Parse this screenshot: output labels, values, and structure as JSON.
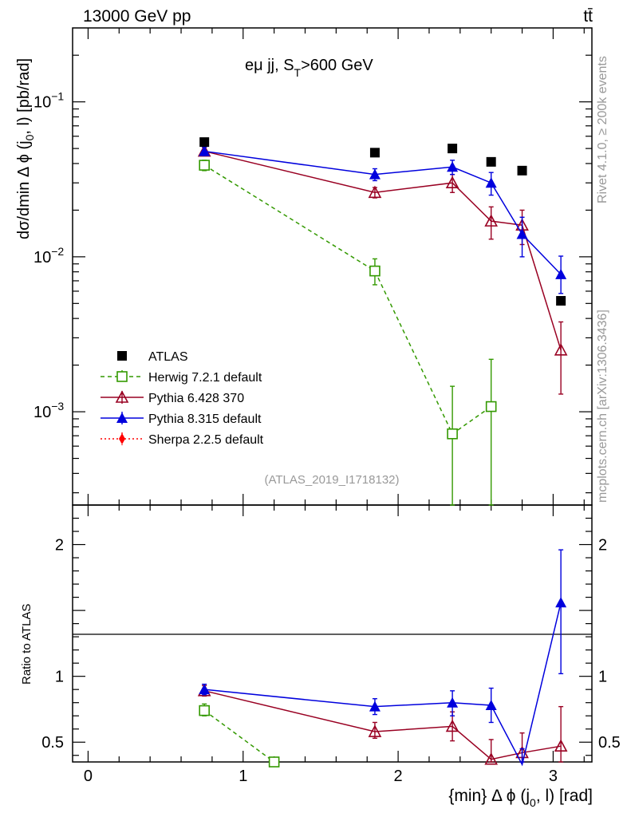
{
  "header": {
    "energy_label": "13000 GeV pp",
    "process_label": "tt̄"
  },
  "side_labels": {
    "rivet": "Rivet 4.1.0, ≥ 200k events",
    "mcplots": "mcplots.cern.ch [arXiv:1306.3436]"
  },
  "chart_data": {
    "type": "line",
    "title": "eμ jj, S_T>600 GeV",
    "title_main": "eμ jj, S",
    "title_sub": "T",
    "title_tail": ">600 GeV",
    "analysis_id": "(ATLAS_2019_I1718132)",
    "ylabel": "dσ/dmin Δ ϕ (j_0, l) [pb/rad]",
    "ylabel_parts": {
      "a": "dσ/dmin Δ ϕ (j",
      "sub": "0",
      "b": ", l) [pb/rad]"
    },
    "xlabel": "{min} Δ ϕ (j_0, l) [rad]",
    "xlabel_parts": {
      "a": "{min} Δ ϕ (j",
      "sub": "0",
      "b": ", l) [rad]"
    },
    "ratio_ylabel": "Ratio to ATLAS",
    "xlim": [
      -0.1,
      3.25
    ],
    "ylim": [
      0.00025,
      0.3
    ],
    "ratio_ylim": [
      0.35,
      2.3
    ],
    "x_ticks": [
      "0",
      "1",
      "2",
      "3"
    ],
    "y_ticks": [
      {
        "value": 0.1,
        "base": "10",
        "exp": "−1"
      },
      {
        "value": 0.01,
        "base": "10",
        "exp": "−2"
      },
      {
        "value": 0.001,
        "base": "10",
        "exp": "−3"
      }
    ],
    "ratio_ticks": [
      "0.5",
      "1",
      "2"
    ],
    "legend_position": "left-middle",
    "series": [
      {
        "name": "ATLAS",
        "color": "#000000",
        "marker": "square-filled",
        "line": "none",
        "x": [
          0.75,
          1.85,
          2.35,
          2.6,
          2.8,
          3.05
        ],
        "y": [
          0.055,
          0.047,
          0.05,
          0.041,
          0.036,
          0.0052
        ]
      },
      {
        "name": "Herwig 7.2.1 default",
        "color": "#339900",
        "marker": "square-open",
        "line": "dashed",
        "x": [
          0.75,
          1.85,
          2.35,
          2.6
        ],
        "y": [
          0.039,
          0.0081,
          0.00072,
          0.00108
        ],
        "err_lo": [
          0.036,
          0.0066,
          1e-05,
          1e-05
        ],
        "err_hi": [
          0.042,
          0.0097,
          0.00146,
          0.00218
        ],
        "ratio_x": [
          0.75,
          1.2
        ],
        "ratio": [
          0.74,
          0.35
        ],
        "ratio_lo": [
          0.7,
          null
        ],
        "ratio_hi": [
          0.79,
          null
        ]
      },
      {
        "name": "Pythia 6.428 370",
        "color": "#990022",
        "marker": "triangle-open",
        "line": "solid",
        "x": [
          0.75,
          1.85,
          2.35,
          2.6,
          2.8,
          3.05
        ],
        "y": [
          0.048,
          0.026,
          0.03,
          0.017,
          0.016,
          0.0025
        ],
        "err_lo": [
          0.045,
          0.024,
          0.026,
          0.013,
          0.012,
          0.0013
        ],
        "err_hi": [
          0.051,
          0.028,
          0.034,
          0.021,
          0.02,
          0.0038
        ],
        "ratio": [
          0.89,
          0.58,
          0.62,
          0.37,
          0.42,
          0.47
        ],
        "ratio_lo": [
          0.85,
          0.53,
          0.51,
          0.29,
          0.3,
          0.25
        ],
        "ratio_hi": [
          0.93,
          0.65,
          0.73,
          0.52,
          0.57,
          0.77
        ]
      },
      {
        "name": "Pythia 8.315 default",
        "color": "#0000dd",
        "marker": "triangle-filled",
        "line": "solid",
        "x": [
          0.75,
          1.85,
          2.35,
          2.6,
          2.8,
          3.05
        ],
        "y": [
          0.048,
          0.034,
          0.038,
          0.03,
          0.014,
          0.0077
        ],
        "err_lo": [
          0.045,
          0.031,
          0.034,
          0.025,
          0.01,
          0.0058
        ],
        "err_hi": [
          0.051,
          0.037,
          0.042,
          0.035,
          0.018,
          0.0101
        ],
        "ratio": [
          0.9,
          0.77,
          0.8,
          0.78,
          0.33,
          1.56
        ],
        "ratio_lo": [
          0.86,
          0.71,
          0.7,
          0.65,
          0.25,
          1.02
        ],
        "ratio_hi": [
          0.94,
          0.83,
          0.89,
          0.91,
          0.45,
          1.96
        ]
      },
      {
        "name": "Sherpa 2.2.5 default",
        "color": "#ff0000",
        "marker": "diamond-filled",
        "line": "dotted",
        "x": [],
        "y": []
      }
    ]
  }
}
